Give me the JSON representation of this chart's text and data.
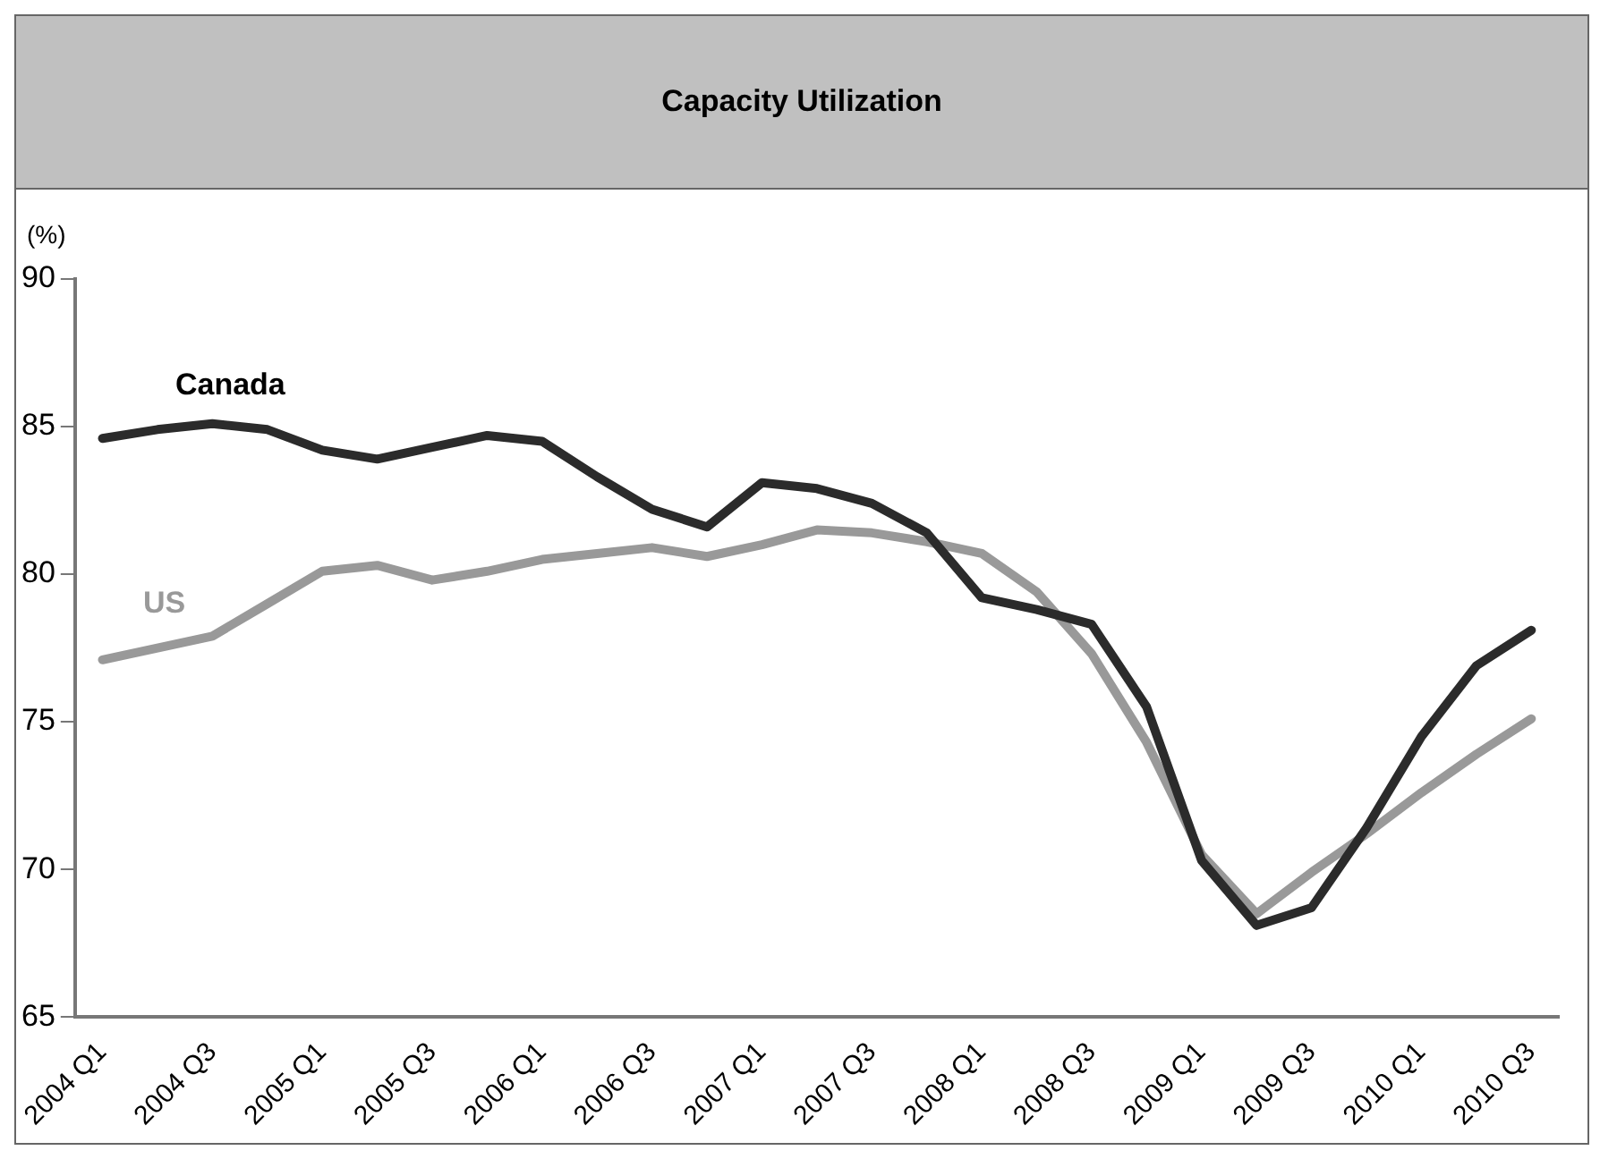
{
  "chart_data": {
    "type": "line",
    "title": "Capacity Utilization",
    "ylabel": "(%)",
    "categories": [
      "2004 Q1",
      null,
      "2004 Q3",
      null,
      "2005 Q1",
      null,
      "2005 Q3",
      null,
      "2006 Q1",
      null,
      "2006 Q3",
      null,
      "2007 Q1",
      null,
      "2007 Q3",
      null,
      "2008 Q1",
      null,
      "2008 Q3",
      null,
      "2009 Q1",
      null,
      "2009 Q3",
      null,
      "2010 Q1",
      null,
      "2010 Q3"
    ],
    "series": [
      {
        "name": "Canada",
        "color": "#2b2b2b",
        "values": [
          84.6,
          84.9,
          85.1,
          84.9,
          84.2,
          83.9,
          84.3,
          84.7,
          84.5,
          83.3,
          82.2,
          81.6,
          83.1,
          82.9,
          82.4,
          81.4,
          79.2,
          78.8,
          78.3,
          75.5,
          70.3,
          68.1,
          68.7,
          71.4,
          74.5,
          76.9,
          78.1
        ]
      },
      {
        "name": "US",
        "color": "#999999",
        "values": [
          77.1,
          77.5,
          77.9,
          79.0,
          80.1,
          80.3,
          79.8,
          80.1,
          80.5,
          80.7,
          80.9,
          80.6,
          81.0,
          81.5,
          81.4,
          81.1,
          80.7,
          79.4,
          77.3,
          74.3,
          70.5,
          68.5,
          69.9,
          71.2,
          72.6,
          73.9,
          75.1
        ]
      }
    ],
    "ylim": [
      65,
      90
    ],
    "yticks": [
      65,
      70,
      75,
      80,
      85,
      90
    ],
    "grid": false,
    "legend": false,
    "marker": "none",
    "line_style": "solid"
  }
}
